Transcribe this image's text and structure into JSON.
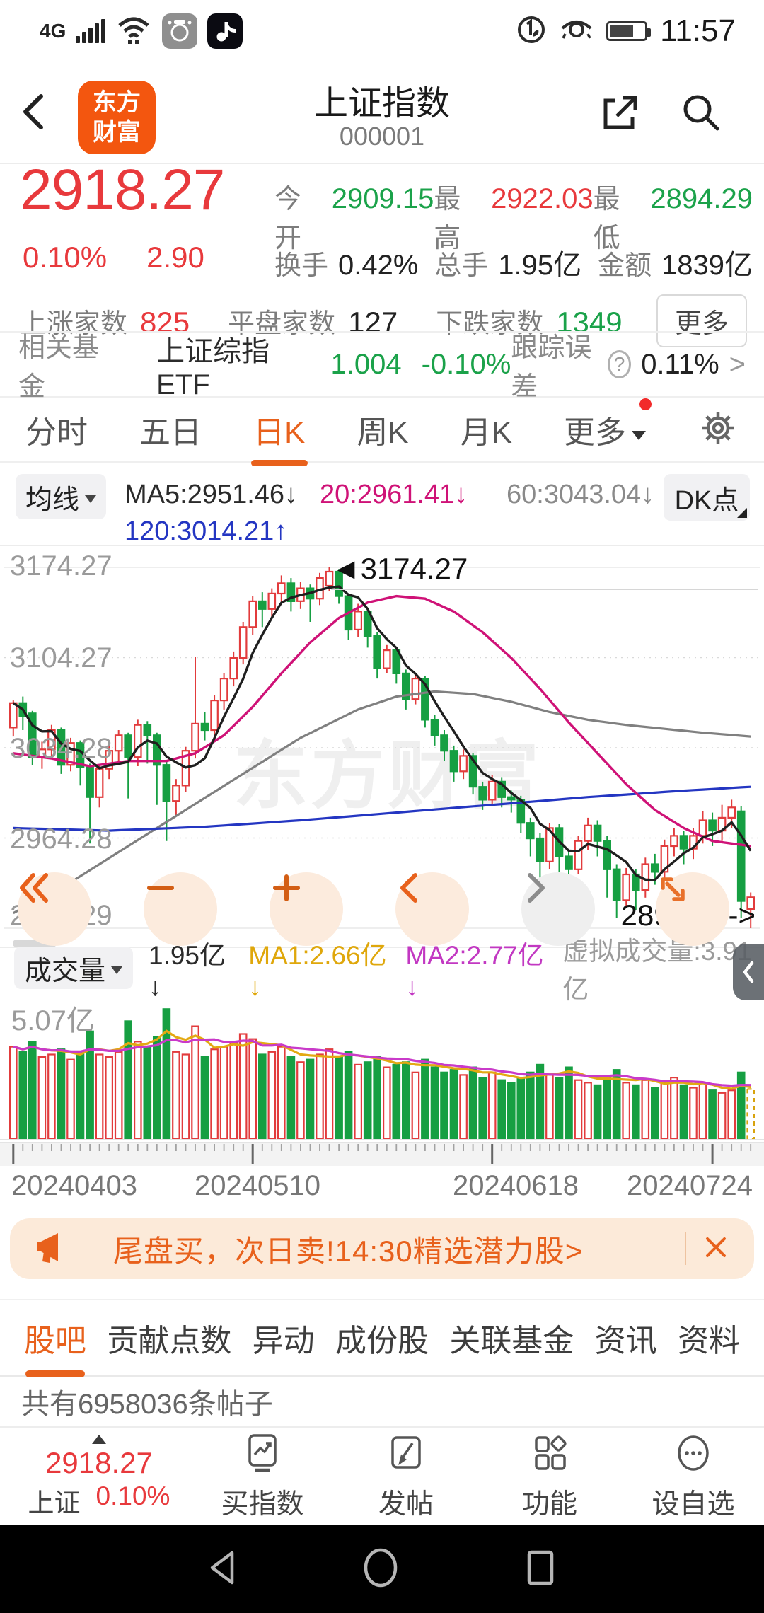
{
  "status": {
    "network": "4G",
    "time": "11:57"
  },
  "header": {
    "logo_line1": "东方",
    "logo_line2": "财富",
    "title": "上证指数",
    "code": "000001"
  },
  "quote": {
    "price": "2918.27",
    "change_pct": "0.10%",
    "change": "2.90",
    "stats": [
      {
        "label": "今开",
        "value": "2909.15"
      },
      {
        "label": "最高",
        "value": "2922.03"
      },
      {
        "label": "最低",
        "value": "2894.29"
      },
      {
        "label": "换手",
        "value": "0.42%"
      },
      {
        "label": "总手",
        "value": "1.95亿"
      },
      {
        "label": "金额",
        "value": "1839亿"
      }
    ],
    "breadth": [
      {
        "label": "上涨家数",
        "value": "825"
      },
      {
        "label": "平盘家数",
        "value": "127"
      },
      {
        "label": "下跌家数",
        "value": "1349"
      }
    ],
    "more_label": "更多"
  },
  "fund": {
    "label": "相关基金",
    "name": "上证综指ETF",
    "nav": "1.004",
    "pct": "-0.10%",
    "tracking_label": "跟踪误差",
    "help": "?",
    "tracking_value": "0.11%",
    "arrow": ">"
  },
  "tabs": {
    "items": [
      "分时",
      "五日",
      "日K",
      "周K",
      "月K"
    ],
    "active": "日K",
    "more": "更多"
  },
  "legend": {
    "ma_button": "均线",
    "ma5": "MA5:2951.46↓",
    "ma20": "20:2961.41↓",
    "ma60": "60:3043.04↓",
    "ma120": "120:3014.21↑",
    "dk": "DK点"
  },
  "kchart": {
    "axis": [
      "3174.27",
      "3104.27",
      "3034.28",
      "2964.28",
      "2894.29"
    ],
    "peak_label": "◄3174.27",
    "low_label": "2894.29->",
    "watermark": "东方财富"
  },
  "volume": {
    "button": "成交量",
    "current": "1.95亿↓",
    "ma1": "MA1:2.66亿↓",
    "ma2": "MA2:2.77亿↓",
    "virtual": "虚拟成交量:3.91亿",
    "max_label": "5.07亿"
  },
  "xaxis": {
    "labels": [
      "20240403",
      "20240510",
      "20240618",
      "20240724"
    ]
  },
  "banner": {
    "text": "尾盘买，次日卖!14:30精选潜力股>"
  },
  "content_tabs": {
    "items": [
      "股吧",
      "贡献点数",
      "异动",
      "成份股",
      "关联基金",
      "资讯",
      "资料"
    ],
    "active": "股吧"
  },
  "posts": {
    "text": "共有6958036条帖子"
  },
  "bottom_nav": {
    "index_price": "2918.27",
    "index_name": "上证",
    "index_pct": "0.10%",
    "items": [
      "买指数",
      "发帖",
      "功能",
      "设自选"
    ]
  },
  "chart_data": {
    "type": "candlestick+volume",
    "title": "上证指数 000001 日K",
    "y_range": [
      2894.29,
      3174.27
    ],
    "y_ticks": [
      3174.27,
      3104.27,
      3034.28,
      2964.28,
      2894.29
    ],
    "x_labels": [
      "20240403",
      "20240510",
      "20240618",
      "20240724"
    ],
    "x_label_indices": [
      0,
      25,
      50,
      73
    ],
    "peak_value": 3174.27,
    "low_value": 2894.29,
    "candles": [
      [
        3050,
        3069,
        3043,
        3071
      ],
      [
        3069,
        3059,
        3048,
        3074
      ],
      [
        3061,
        3027,
        3021,
        3063
      ],
      [
        3027,
        3033,
        3018,
        3039
      ],
      [
        3033,
        3048,
        3028,
        3052
      ],
      [
        3048,
        3021,
        3014,
        3050
      ],
      [
        3021,
        3038,
        3016,
        3042
      ],
      [
        3038,
        3019,
        3005,
        3040
      ],
      [
        3019,
        2996,
        2960,
        3022
      ],
      [
        2996,
        3018,
        2988,
        3021
      ],
      [
        3018,
        3032,
        3010,
        3036
      ],
      [
        3032,
        3044,
        3024,
        3048
      ],
      [
        3044,
        3027,
        2995,
        3046
      ],
      [
        3027,
        3052,
        3020,
        3056
      ],
      [
        3052,
        3044,
        3022,
        3055
      ],
      [
        3044,
        3021,
        2990,
        3046
      ],
      [
        3021,
        2993,
        2962,
        3024
      ],
      [
        2993,
        3005,
        2981,
        3010
      ],
      [
        3005,
        3032,
        3000,
        3035
      ],
      [
        3032,
        3053,
        3026,
        3105
      ],
      [
        3053,
        3048,
        3040,
        3062
      ],
      [
        3048,
        3071,
        3044,
        3075
      ],
      [
        3071,
        3088,
        3064,
        3092
      ],
      [
        3088,
        3104,
        3082,
        3109
      ],
      [
        3104,
        3128,
        3099,
        3132
      ],
      [
        3128,
        3148,
        3122,
        3152
      ],
      [
        3148,
        3142,
        3128,
        3155
      ],
      [
        3142,
        3154,
        3136,
        3158
      ],
      [
        3154,
        3162,
        3146,
        3168
      ],
      [
        3162,
        3148,
        3140,
        3166
      ],
      [
        3148,
        3158,
        3142,
        3163
      ],
      [
        3158,
        3150,
        3132,
        3161
      ],
      [
        3150,
        3166,
        3145,
        3170
      ],
      [
        3160,
        3171,
        3156,
        3174.27
      ],
      [
        3171,
        3152,
        3146,
        3173
      ],
      [
        3152,
        3126,
        3118,
        3154
      ],
      [
        3126,
        3140,
        3120,
        3146
      ],
      [
        3140,
        3121,
        3112,
        3143
      ],
      [
        3121,
        3096,
        3088,
        3124
      ],
      [
        3096,
        3110,
        3092,
        3114
      ],
      [
        3110,
        3092,
        3084,
        3112
      ],
      [
        3092,
        3072,
        3064,
        3095
      ],
      [
        3072,
        3088,
        3068,
        3092
      ],
      [
        3088,
        3056,
        3050,
        3090
      ],
      [
        3056,
        3044,
        3036,
        3060
      ],
      [
        3044,
        3032,
        3024,
        3048
      ],
      [
        3032,
        3016,
        3008,
        3036
      ],
      [
        3016,
        3028,
        3010,
        3033
      ],
      [
        3028,
        3004,
        2998,
        3030
      ],
      [
        3004,
        2994,
        2986,
        3008
      ],
      [
        2994,
        3008,
        2990,
        3013
      ],
      [
        3008,
        2996,
        2988,
        3011
      ],
      [
        2996,
        2994,
        2984,
        3001
      ],
      [
        2994,
        2976,
        2968,
        2997
      ],
      [
        2976,
        2964,
        2950,
        2980
      ],
      [
        2964,
        2946,
        2932,
        2968
      ],
      [
        2946,
        2972,
        2940,
        2976
      ],
      [
        2972,
        2950,
        2938,
        2975
      ],
      [
        2950,
        2940,
        2904,
        2954
      ],
      [
        2940,
        2962,
        2936,
        2966
      ],
      [
        2962,
        2974,
        2955,
        2980
      ],
      [
        2974,
        2962,
        2950,
        2978
      ],
      [
        2962,
        2940,
        2918,
        2966
      ],
      [
        2940,
        2916,
        2902,
        2944
      ],
      [
        2916,
        2936,
        2910,
        2941
      ],
      [
        2936,
        2924,
        2908,
        2940
      ],
      [
        2924,
        2944,
        2918,
        2949
      ],
      [
        2944,
        2938,
        2928,
        2952
      ],
      [
        2938,
        2958,
        2932,
        2963
      ],
      [
        2958,
        2966,
        2950,
        2972
      ],
      [
        2966,
        2956,
        2944,
        2970
      ],
      [
        2956,
        2966,
        2948,
        2972
      ],
      [
        2966,
        2978,
        2960,
        2985
      ],
      [
        2978,
        2970,
        2958,
        2984
      ],
      [
        2970,
        2980,
        2962,
        2990
      ],
      [
        2980,
        2988,
        2972,
        2994
      ],
      [
        2985,
        2915.4,
        2902,
        2989
      ],
      [
        2909.15,
        2918.27,
        2894.29,
        2922.03
      ]
    ],
    "volumes": [
      3.6,
      3.4,
      3.8,
      3.2,
      3.3,
      3.5,
      3.1,
      3.4,
      4.2,
      3.3,
      3.2,
      3.4,
      4.6,
      3.8,
      3.6,
      4.0,
      5.07,
      3.4,
      3.3,
      4.4,
      3.2,
      3.5,
      3.6,
      3.8,
      4.1,
      3.9,
      3.3,
      3.4,
      3.6,
      3.2,
      3.0,
      3.1,
      3.3,
      3.5,
      3.2,
      3.4,
      2.9,
      3.0,
      3.2,
      2.8,
      2.9,
      3.0,
      2.6,
      3.1,
      2.8,
      2.6,
      2.7,
      2.5,
      2.8,
      2.4,
      2.6,
      2.3,
      2.2,
      2.4,
      2.6,
      2.9,
      2.5,
      2.4,
      2.8,
      2.3,
      2.2,
      2.1,
      2.4,
      2.7,
      2.2,
      2.1,
      2.3,
      2.0,
      2.2,
      2.4,
      2.1,
      2.0,
      2.2,
      1.9,
      1.8,
      1.9,
      2.6,
      1.95
    ],
    "vol_max": 5.3,
    "ma20": [
      [
        0,
        3030
      ],
      [
        4,
        3026
      ],
      [
        8,
        3020
      ],
      [
        12,
        3024
      ],
      [
        16,
        3024
      ],
      [
        19,
        3030
      ],
      [
        22,
        3044
      ],
      [
        25,
        3066
      ],
      [
        28,
        3092
      ],
      [
        31,
        3116
      ],
      [
        34,
        3135
      ],
      [
        37,
        3147
      ],
      [
        40,
        3152
      ],
      [
        43,
        3150
      ],
      [
        46,
        3140
      ],
      [
        49,
        3124
      ],
      [
        52,
        3104
      ],
      [
        55,
        3080
      ],
      [
        58,
        3054
      ],
      [
        61,
        3030
      ],
      [
        64,
        3006
      ],
      [
        67,
        2986
      ],
      [
        70,
        2972
      ],
      [
        73,
        2962
      ],
      [
        77,
        2958
      ]
    ],
    "ma60": [
      [
        0,
        2906
      ],
      [
        6,
        2930
      ],
      [
        12,
        2958
      ],
      [
        18,
        2986
      ],
      [
        24,
        3014
      ],
      [
        30,
        3042
      ],
      [
        36,
        3064
      ],
      [
        40,
        3074
      ],
      [
        44,
        3078
      ],
      [
        48,
        3076
      ],
      [
        52,
        3070
      ],
      [
        56,
        3062
      ],
      [
        60,
        3056
      ],
      [
        64,
        3052
      ],
      [
        68,
        3049
      ],
      [
        72,
        3046
      ],
      [
        77,
        3043
      ]
    ],
    "ma120": [
      [
        0,
        2972
      ],
      [
        10,
        2970
      ],
      [
        20,
        2973
      ],
      [
        30,
        2978
      ],
      [
        40,
        2984
      ],
      [
        50,
        2990
      ],
      [
        60,
        2996
      ],
      [
        70,
        3001
      ],
      [
        77,
        3004
      ]
    ],
    "colors": {
      "up": "#e23b3c",
      "down": "#169f42",
      "ma5": "#1f1f1f",
      "ma20": "#cf1277",
      "ma60": "#808080",
      "ma120": "#2436c2",
      "vol_ma1": "#e3a912",
      "vol_ma2": "#c93ac9",
      "vol_last": "#d8a30e"
    }
  }
}
